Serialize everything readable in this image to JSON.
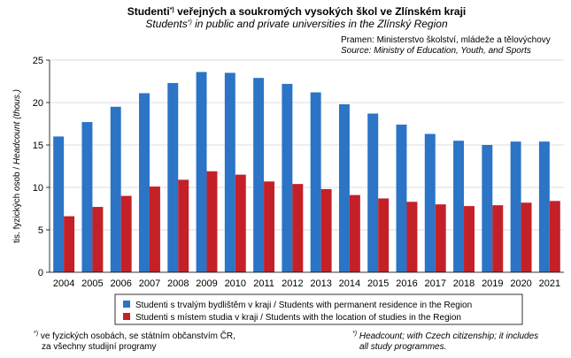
{
  "chart_data": {
    "type": "bar",
    "title": [
      "Studenti",
      "*)",
      " veřejných a soukromých  vysokých  škol ve Zlínském kraji"
    ],
    "subtitle": [
      "Students",
      "*)",
      " in public and private universities in the Zlínský Region"
    ],
    "source": [
      "Pramen:  Ministerstvo školství, mládeže a tělovýchovy",
      "Source: Ministry of Education, Youth, and Sports"
    ],
    "y_label": [
      "tis. fyzických osob / ",
      "Headcount (thous.)"
    ],
    "categories": [
      "2004",
      "2005",
      "2006",
      "2007",
      "2008",
      "2009",
      "2010",
      "2011",
      "2012",
      "2013",
      "2014",
      "2015",
      "2016",
      "2017",
      "2018",
      "2019",
      "2020",
      "2021"
    ],
    "series": [
      {
        "name": "Studenti s trvalým bydlištěm v kraji / Students with permanent residence in the Region",
        "color": "#2b74c6",
        "values": [
          16.0,
          17.7,
          19.5,
          21.1,
          22.3,
          23.6,
          23.5,
          22.9,
          22.2,
          21.2,
          19.8,
          18.7,
          17.4,
          16.3,
          15.5,
          15.0,
          15.4,
          15.4
        ]
      },
      {
        "name": "Studenti s místem studia v kraji / Students with the location of studies in the Region",
        "color": "#c42028",
        "values": [
          6.6,
          7.7,
          9.0,
          10.1,
          10.9,
          11.9,
          11.5,
          10.7,
          10.4,
          9.8,
          9.1,
          8.7,
          8.3,
          8.0,
          7.8,
          7.9,
          8.2,
          8.4
        ]
      }
    ],
    "ylim": [
      0,
      25
    ],
    "yticks": [
      0,
      5,
      10,
      15,
      20,
      25
    ],
    "grid": true,
    "footnote_left": [
      "*)",
      " ve fyzických osobách, se státním občanstvím ČR,",
      "za všechny studijní programy"
    ],
    "footnote_right": [
      "*)",
      " Headcount; with Czech citizenship; it includes",
      "all study programmes."
    ]
  }
}
